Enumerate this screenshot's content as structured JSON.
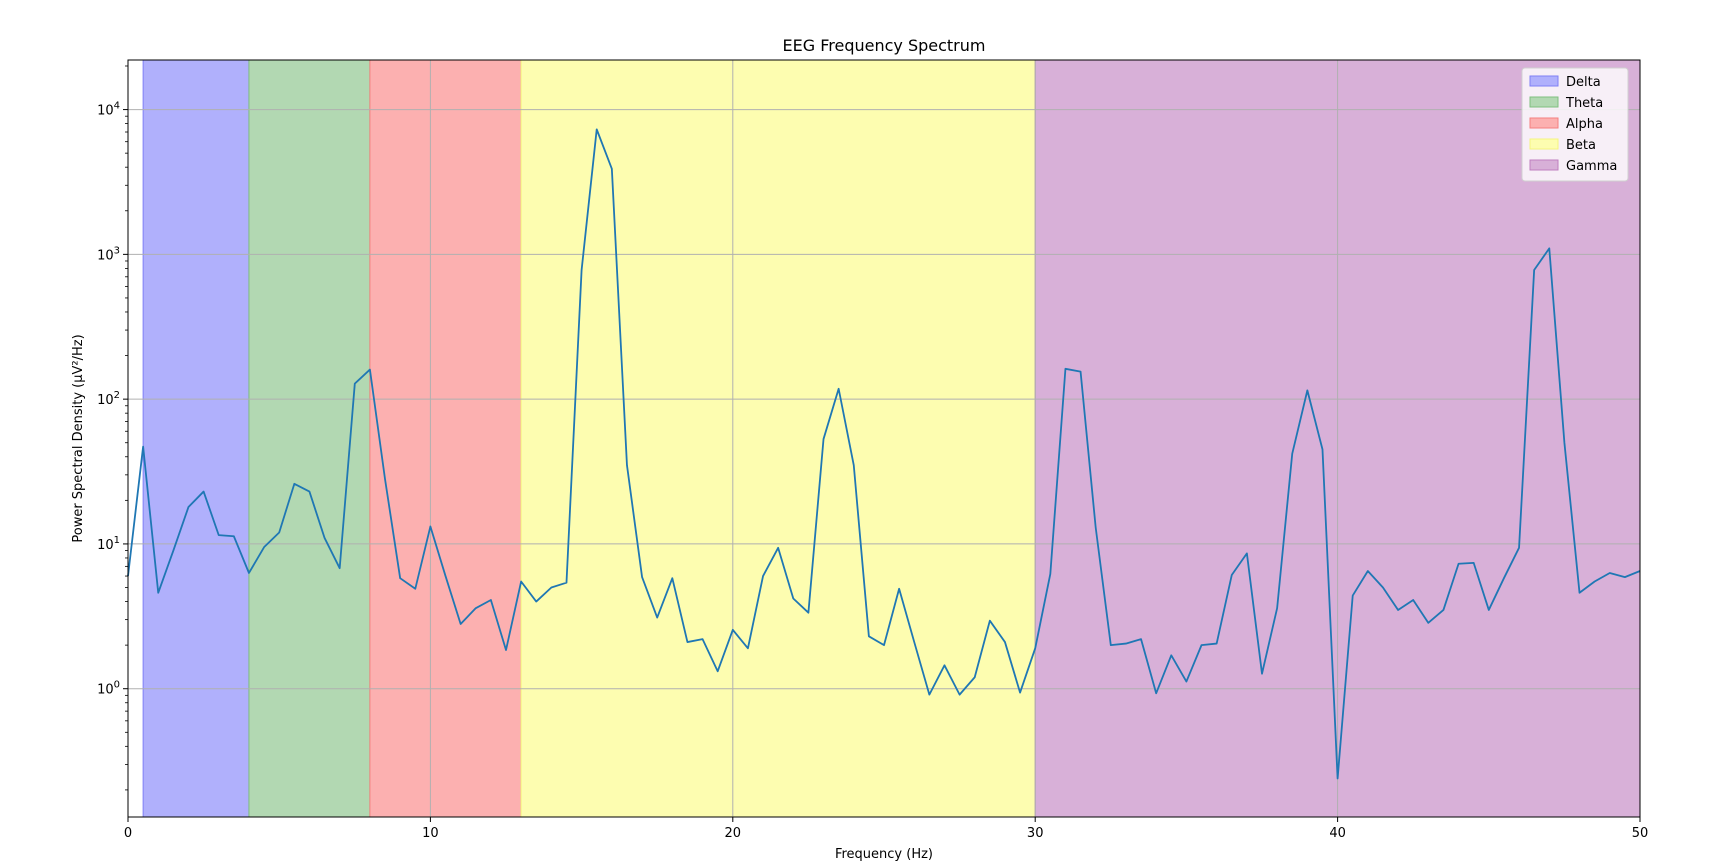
{
  "chart_data": {
    "type": "line",
    "title": "EEG Frequency Spectrum",
    "xlabel": "Frequency (Hz)",
    "ylabel": "Power Spectral Density (µV²/Hz)",
    "xlim": [
      0,
      50
    ],
    "ylim": [
      0.13,
      22000
    ],
    "yscale": "log",
    "grid": true,
    "legend_position": "top-right",
    "x_ticks": [
      {
        "value": 0,
        "label": "0"
      },
      {
        "value": 10,
        "label": "10"
      },
      {
        "value": 20,
        "label": "20"
      },
      {
        "value": 30,
        "label": "30"
      },
      {
        "value": 40,
        "label": "40"
      },
      {
        "value": 50,
        "label": "50"
      }
    ],
    "y_ticks": [
      {
        "value": 1,
        "base": "10",
        "exp": "0"
      },
      {
        "value": 10,
        "base": "10",
        "exp": "1"
      },
      {
        "value": 100,
        "base": "10",
        "exp": "2"
      },
      {
        "value": 1000,
        "base": "10",
        "exp": "3"
      },
      {
        "value": 10000,
        "base": "10",
        "exp": "4"
      }
    ],
    "bands": [
      {
        "name": "Delta",
        "range": [
          0.5,
          4
        ],
        "color": "#b0b0fc",
        "edge": "#7f7ff5"
      },
      {
        "name": "Theta",
        "range": [
          4,
          8
        ],
        "color": "#b2d8b2",
        "edge": "#7fbf7f"
      },
      {
        "name": "Alpha",
        "range": [
          8,
          13
        ],
        "color": "#fcb0b0",
        "edge": "#f57f7f"
      },
      {
        "name": "Beta",
        "range": [
          13,
          30
        ],
        "color": "#fdfdb0",
        "edge": "#f5f57f"
      },
      {
        "name": "Gamma",
        "range": [
          30,
          50
        ],
        "color": "#d8b0d8",
        "edge": "#bf7fbf"
      }
    ],
    "series": [
      {
        "color": "#1f77b4",
        "x": [
          0,
          0.5,
          1,
          1.5,
          2,
          2.5,
          3,
          3.5,
          4,
          4.5,
          5,
          5.5,
          6,
          6.5,
          7,
          7.5,
          8,
          8.5,
          9,
          9.5,
          10,
          10.5,
          11,
          11.5,
          12,
          12.5,
          13,
          13.5,
          14,
          14.5,
          15,
          15.5,
          16,
          16.5,
          17,
          17.5,
          18,
          18.5,
          19,
          19.5,
          20,
          20.5,
          21,
          21.5,
          22,
          22.5,
          23,
          23.5,
          24,
          24.5,
          25,
          25.5,
          26,
          26.5,
          27,
          27.5,
          28,
          28.5,
          29,
          29.5,
          30,
          30.5,
          31,
          31.5,
          32,
          32.5,
          33,
          33.5,
          34,
          34.5,
          35,
          35.5,
          36,
          36.5,
          37,
          37.5,
          38,
          38.5,
          39,
          39.5,
          40,
          40.5,
          41,
          41.5,
          42,
          42.5,
          43,
          43.5,
          44,
          44.5,
          45,
          45.5,
          46,
          46.5,
          47,
          47.5,
          48,
          48.5,
          49,
          49.5,
          50
        ],
        "values": [
          6,
          47,
          4.6,
          9,
          18,
          23,
          11.5,
          11.3,
          6.3,
          9.5,
          12,
          26,
          23,
          11,
          6.8,
          128,
          160,
          28,
          5.8,
          4.9,
          13.2,
          6,
          2.8,
          3.6,
          4.1,
          1.85,
          5.5,
          4,
          5,
          5.4,
          780,
          7300,
          3900,
          35,
          5.9,
          3.1,
          5.8,
          2.1,
          2.2,
          1.32,
          2.55,
          1.9,
          6,
          9.4,
          4.2,
          3.35,
          53,
          118,
          35,
          2.3,
          2,
          4.9,
          2.1,
          0.91,
          1.45,
          0.91,
          1.2,
          2.95,
          2.1,
          0.94,
          1.9,
          6.2,
          162,
          155,
          13,
          2,
          2.05,
          2.2,
          0.93,
          1.7,
          1.12,
          2,
          2.05,
          6.1,
          8.6,
          1.27,
          3.6,
          42,
          115,
          45,
          0.24,
          4.4,
          6.5,
          5,
          3.5,
          4.1,
          2.85,
          3.5,
          7.3,
          7.4,
          3.5,
          5.8,
          9.4,
          780,
          1100,
          50,
          4.6,
          5.5,
          6.3,
          5.9,
          6.5
        ]
      }
    ]
  }
}
